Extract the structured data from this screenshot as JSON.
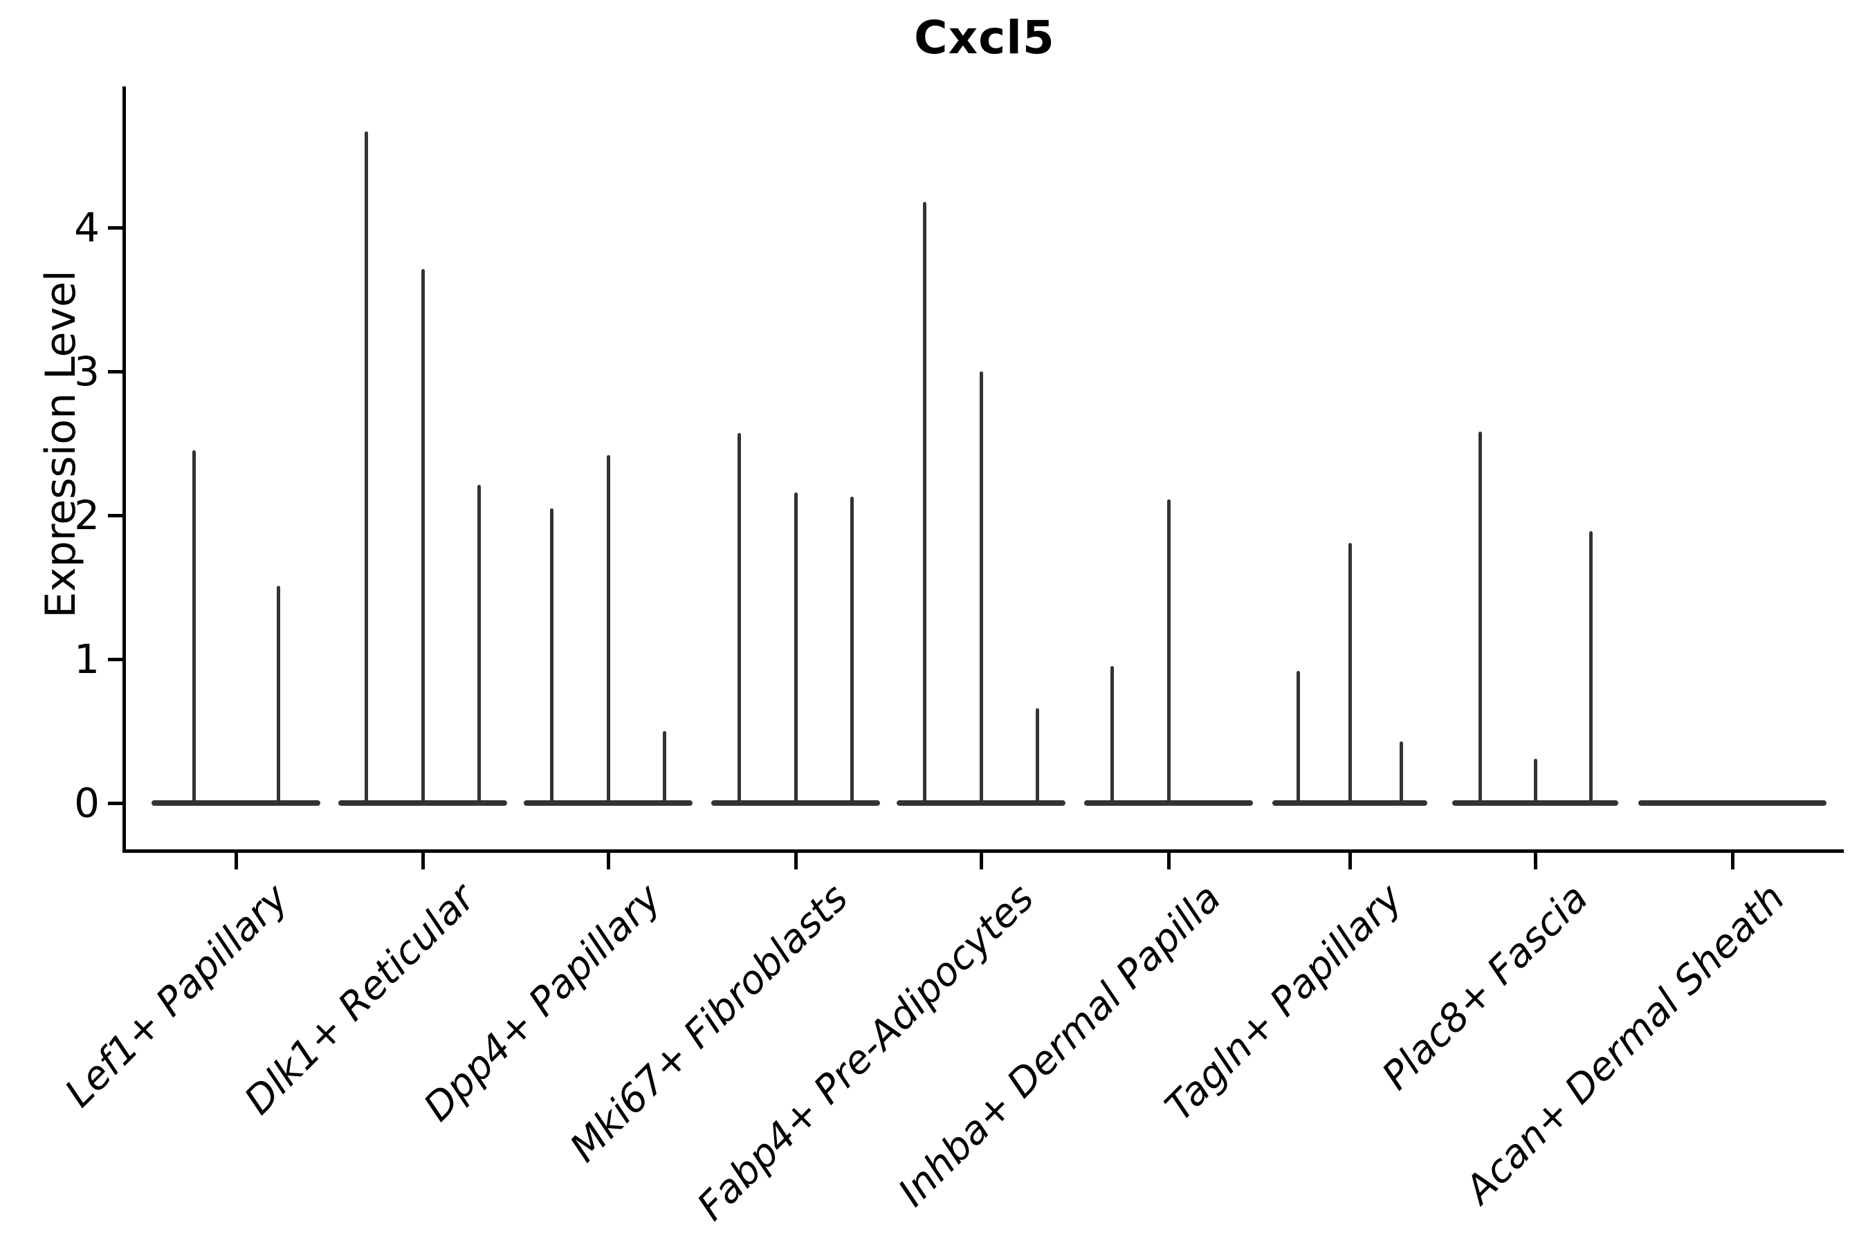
{
  "title": "Cxcl5",
  "axes": {
    "y_label": "Expression Level",
    "y_tick_labels": [
      "0",
      "1",
      "2",
      "3",
      "4"
    ]
  },
  "colors": {
    "axis_ink": "#000000",
    "violin_ink": "#333333",
    "background": "#ffffff"
  },
  "chart_data": {
    "type": "violin",
    "title": "Cxcl5",
    "xlabel": "",
    "ylabel": "Expression Level",
    "ylim": [
      0,
      4.98
    ],
    "y_ticks": [
      0,
      1,
      2,
      3,
      4
    ],
    "grid": false,
    "legend": false,
    "description": "Sparse single-cell expression violins: each category shows a flat density base at 0 with thin needles; needle heights are the per-violin maximum expression values.",
    "categories": [
      {
        "label": "Lef1+ Papillary",
        "violin_max_values": [
          2.45,
          1.51
        ]
      },
      {
        "label": "Dlk1+ Reticular",
        "violin_max_values": [
          4.67,
          3.71,
          2.21
        ]
      },
      {
        "label": "Dpp4+ Papillary",
        "violin_max_values": [
          2.05,
          2.42,
          0.5
        ]
      },
      {
        "label": "Mki67+ Fibroblasts",
        "violin_max_values": [
          2.57,
          2.16,
          2.13
        ]
      },
      {
        "label": "Fabp4+ Pre-Adipocytes",
        "violin_max_values": [
          4.18,
          3.0,
          0.66
        ]
      },
      {
        "label": "Inhba+ Dermal Papilla",
        "violin_max_values": [
          0.95,
          2.11,
          0
        ]
      },
      {
        "label": "Tagln+ Papillary",
        "violin_max_values": [
          0.92,
          1.81,
          0.43
        ]
      },
      {
        "label": "Plac8+ Fascia",
        "violin_max_values": [
          2.58,
          0.31,
          1.89
        ]
      },
      {
        "label": "Acan+ Dermal Sheath",
        "violin_max_values": [
          0
        ]
      }
    ]
  }
}
